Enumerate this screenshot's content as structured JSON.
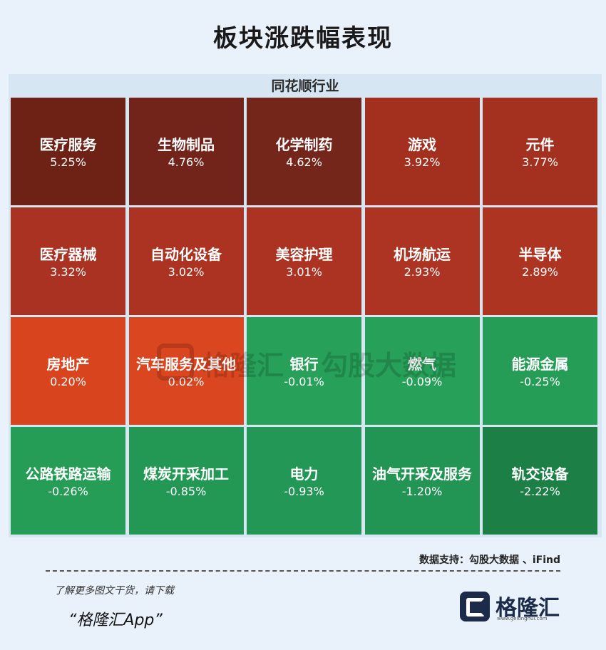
{
  "title": "板块涨跌幅表现",
  "chart_data": {
    "type": "heatmap",
    "header": "同花顺行业",
    "cells": [
      {
        "name": "医疗服务",
        "value": 5.25,
        "label": "5.25%",
        "color": "#6e2216"
      },
      {
        "name": "生物制品",
        "value": 4.76,
        "label": "4.76%",
        "color": "#72241a"
      },
      {
        "name": "化学制药",
        "value": 4.62,
        "label": "4.62%",
        "color": "#74261b"
      },
      {
        "name": "游戏",
        "value": 3.92,
        "label": "3.92%",
        "color": "#a3301f"
      },
      {
        "name": "元件",
        "value": 3.77,
        "label": "3.77%",
        "color": "#a43120"
      },
      {
        "name": "医疗器械",
        "value": 3.32,
        "label": "3.32%",
        "color": "#a93222"
      },
      {
        "name": "自动化设备",
        "value": 3.02,
        "label": "3.02%",
        "color": "#ac3321"
      },
      {
        "name": "美容护理",
        "value": 3.01,
        "label": "3.01%",
        "color": "#ac3321"
      },
      {
        "name": "机场航运",
        "value": 2.93,
        "label": "2.93%",
        "color": "#ad3422"
      },
      {
        "name": "半导体",
        "value": 2.89,
        "label": "2.89%",
        "color": "#ae3422"
      },
      {
        "name": "房地产",
        "value": 0.2,
        "label": "0.20%",
        "color": "#d8441e"
      },
      {
        "name": "汽车服务及其他",
        "value": 0.02,
        "label": "0.02%",
        "color": "#da461f"
      },
      {
        "name": "银行",
        "value": -0.01,
        "label": "-0.01%",
        "color": "#27a159"
      },
      {
        "name": "燃气",
        "value": -0.09,
        "label": "-0.09%",
        "color": "#27a159"
      },
      {
        "name": "能源金属",
        "value": -0.25,
        "label": "-0.25%",
        "color": "#259d56"
      },
      {
        "name": "公路铁路运输",
        "value": -0.26,
        "label": "-0.26%",
        "color": "#259d56"
      },
      {
        "name": "煤炭开采加工",
        "value": -0.85,
        "label": "-0.85%",
        "color": "#239855"
      },
      {
        "name": "电力",
        "value": -0.93,
        "label": "-0.93%",
        "color": "#239755"
      },
      {
        "name": "油气开采及服务",
        "value": -1.2,
        "label": "-1.20%",
        "color": "#229454"
      },
      {
        "name": "轨交设备",
        "value": -2.22,
        "label": "-2.22%",
        "color": "#1b7f46"
      }
    ]
  },
  "watermark": {
    "text1": "格隆汇",
    "text2": "勾股大数据"
  },
  "source": "数据支持：勾股大数据 、iFind",
  "footer": {
    "line1": "了解更多图文干货，请下载",
    "line2": "“格隆汇App”"
  },
  "brand": {
    "name": "格隆汇",
    "url": "www.gelonghui.com"
  }
}
